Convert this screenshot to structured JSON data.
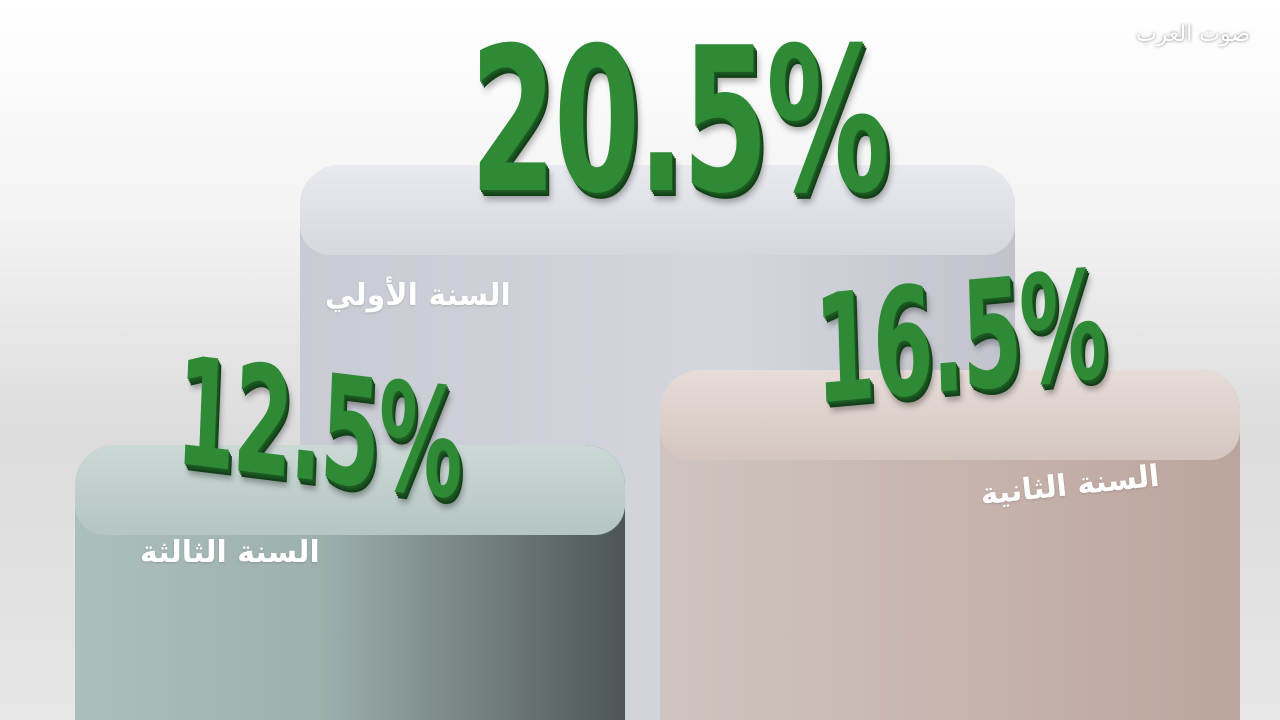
{
  "brand": "صوت العرب",
  "podiums": [
    {
      "label": "السنة الأولي",
      "value": "20.5%"
    },
    {
      "label": "السنة الثانية",
      "value": "16.5%"
    },
    {
      "label": "السنة الثالثة",
      "value": "12.5%"
    }
  ]
}
